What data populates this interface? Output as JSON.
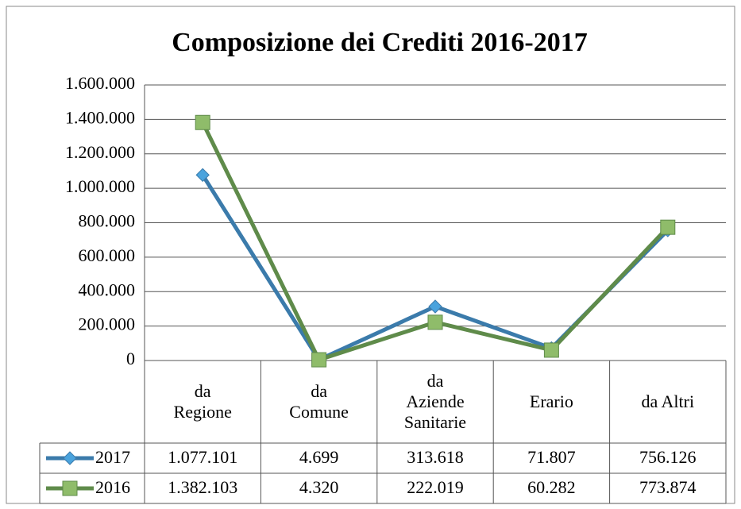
{
  "chart_data": {
    "type": "line",
    "title": "Composizione dei Crediti 2016-2017",
    "categories": [
      "da Regione",
      "da Comune",
      "da Aziende Sanitarie",
      "Erario",
      "da Altri"
    ],
    "series": [
      {
        "name": "2017",
        "color": "#3b7bab",
        "marker": "diamond",
        "marker_color": "#4aa3dd",
        "values": [
          1077101,
          4699,
          313618,
          71807,
          756126
        ],
        "value_labels": [
          "1.077.101",
          "4.699",
          "313.618",
          "71.807",
          "756.126"
        ]
      },
      {
        "name": "2016",
        "color": "#5f8b4a",
        "marker": "square",
        "marker_color": "#8fbc6a",
        "values": [
          1382103,
          4320,
          222019,
          60282,
          773874
        ],
        "value_labels": [
          "1.382.103",
          "4.320",
          "222.019",
          "60.282",
          "773.874"
        ]
      }
    ],
    "ylim": [
      0,
      1600000
    ],
    "yticks": [
      0,
      {
        "value": 200000,
        "label": "200.000"
      },
      {
        "value": 400000,
        "label": "400.000"
      },
      {
        "value": 600000,
        "label": "600.000"
      },
      {
        "value": 800000,
        "label": "800.000"
      },
      {
        "value": 1000000,
        "label": "1.000.000"
      },
      {
        "value": 1200000,
        "label": "1.200.000"
      },
      {
        "value": 1400000,
        "label": "1.400.000"
      },
      {
        "value": 1600000,
        "label": "1.600.000"
      }
    ],
    "grid": true,
    "data_table": true
  }
}
